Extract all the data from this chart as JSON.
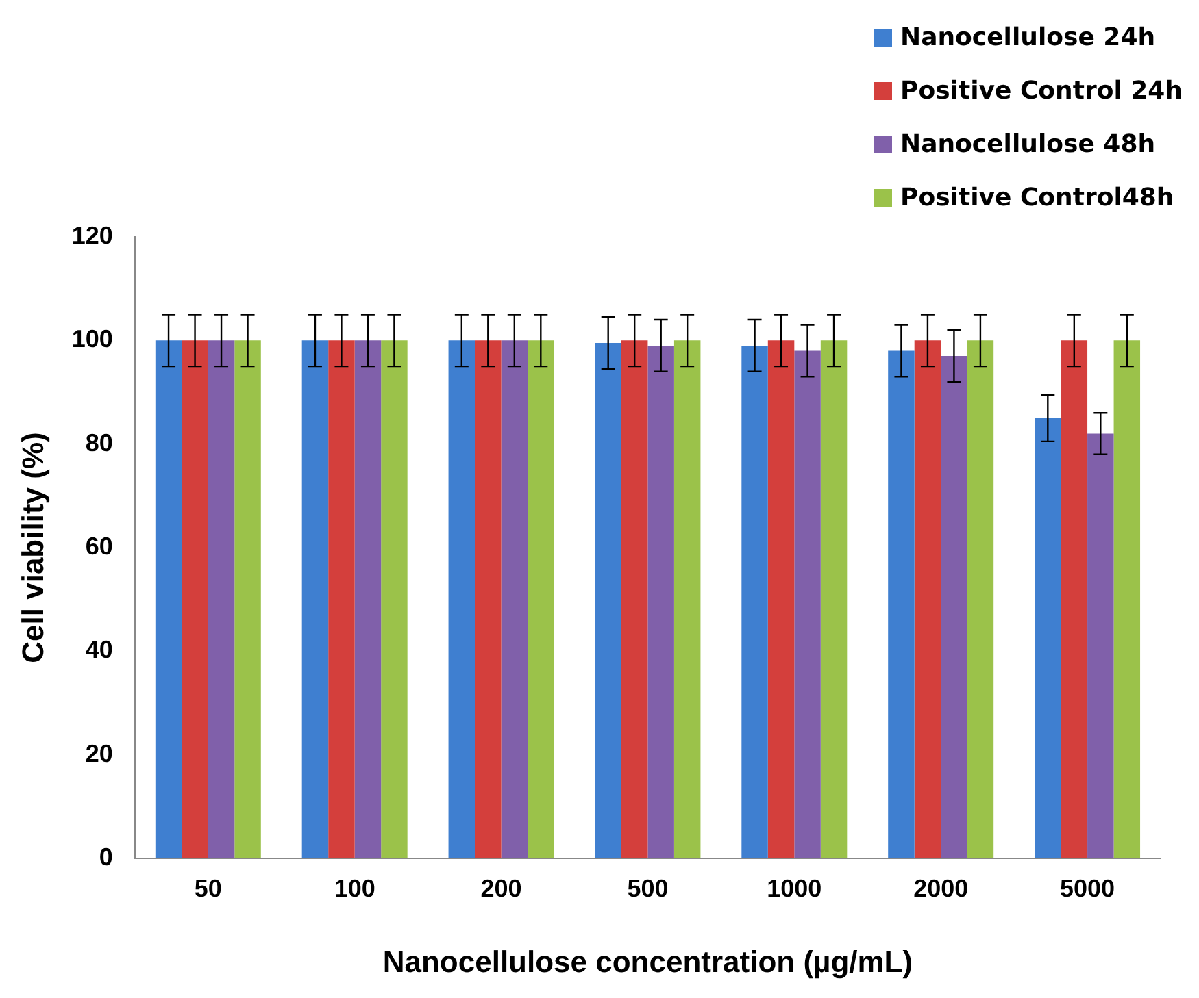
{
  "chart_data": {
    "type": "bar",
    "xlabel": "Nanocellulose concentration (µg/mL)",
    "ylabel": "Cell viability (%)",
    "categories": [
      "50",
      "100",
      "200",
      "500",
      "1000",
      "2000",
      "5000"
    ],
    "series": [
      {
        "name": "Nanocellulose 24h",
        "color": "#3f7fd0",
        "values": [
          100,
          100,
          100,
          99.5,
          99,
          98,
          85
        ],
        "errors": [
          5,
          5,
          5,
          5,
          5,
          5,
          4.5
        ]
      },
      {
        "name": "Positive Control 24h",
        "color": "#d43f3c",
        "values": [
          100,
          100,
          100,
          100,
          100,
          100,
          100
        ],
        "errors": [
          5,
          5,
          5,
          5,
          5,
          5,
          5
        ]
      },
      {
        "name": "Nanocellulose 48h",
        "color": "#8060aa",
        "values": [
          100,
          100,
          100,
          99,
          98,
          97,
          82
        ],
        "errors": [
          5,
          5,
          5,
          5,
          5,
          5,
          4
        ]
      },
      {
        "name": "Positive Control48h",
        "color": "#9bc24a",
        "values": [
          100,
          100,
          100,
          100,
          100,
          100,
          100
        ],
        "errors": [
          5,
          5,
          5,
          5,
          5,
          5,
          5
        ]
      }
    ],
    "ylim": [
      0,
      120
    ],
    "yticks": [
      0,
      20,
      40,
      60,
      80,
      100,
      120
    ],
    "grid": false,
    "legend": "top right"
  }
}
